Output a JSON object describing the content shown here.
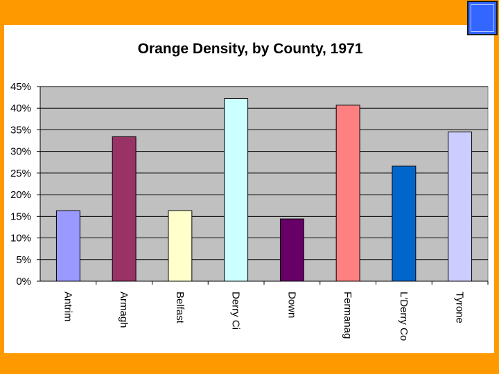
{
  "chart_data": {
    "type": "bar",
    "title": "Orange Density, by County, 1971",
    "xlabel": "",
    "ylabel": "",
    "ylim": [
      0,
      45
    ],
    "y_tick_labels": [
      "0%",
      "5%",
      "10%",
      "15%",
      "20%",
      "25%",
      "30%",
      "35%",
      "40%",
      "45%"
    ],
    "grid": true,
    "categories": [
      "Antrim",
      "Armagh",
      "Belfast",
      "Derry Ci",
      "Down",
      "Fermanag",
      "L'Derry Co",
      "Tyrone"
    ],
    "values": [
      16.3,
      33.4,
      16.3,
      42.2,
      14.4,
      40.7,
      26.6,
      34.5
    ],
    "bar_colors": [
      "#9999FF",
      "#993366",
      "#FFFFCC",
      "#CCFFFF",
      "#660066",
      "#FF8080",
      "#0066CC",
      "#CCCCFF"
    ]
  },
  "colors": {
    "background": "#FF9900",
    "plot_area": "#C0C0C0",
    "corner_box": "#3366FF"
  }
}
